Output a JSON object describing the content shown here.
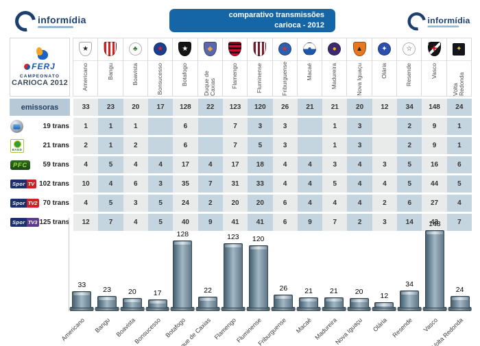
{
  "header": {
    "brand_left": "informídia",
    "brand_right": "informídia",
    "title_line1": "comparativo transmissões",
    "title_line2": "carioca - 2012"
  },
  "league": {
    "logo_text": "FERJ",
    "line1": "CAMPEONATO",
    "line2": "CARIOCA 2012"
  },
  "teams": [
    {
      "name": "Americano",
      "badge": {
        "shape": "shield",
        "pattern": "solid",
        "c1": "#ffffff",
        "c2": "#222222",
        "glyph": "★"
      }
    },
    {
      "name": "Bangu",
      "badge": {
        "shape": "shield",
        "pattern": "stripes-v",
        "c1": "#d12026",
        "c2": "#ffffff",
        "glyph": ""
      }
    },
    {
      "name": "Boavista",
      "badge": {
        "shape": "circle",
        "pattern": "solid",
        "c1": "#ffffff",
        "c2": "#2e7d32",
        "glyph": "♣"
      }
    },
    {
      "name": "Bonsucesso",
      "badge": {
        "shape": "circle",
        "pattern": "solid",
        "c1": "#1a3f8f",
        "c2": "#dd2222",
        "glyph": "★"
      }
    },
    {
      "name": "Botafogo",
      "badge": {
        "shape": "shield",
        "pattern": "solid",
        "c1": "#141414",
        "c2": "#ffffff",
        "glyph": "★"
      }
    },
    {
      "name": "Duque de Caxias",
      "badge": {
        "shape": "shield",
        "pattern": "solid",
        "c1": "#5a67ad",
        "c2": "#e8a33d",
        "glyph": "◆"
      }
    },
    {
      "name": "Flamengo",
      "badge": {
        "shape": "shield",
        "pattern": "stripes-h",
        "c1": "#c8102e",
        "c2": "#141414",
        "glyph": ""
      }
    },
    {
      "name": "Fluminense",
      "badge": {
        "shape": "shield",
        "pattern": "stripes-v",
        "c1": "#7a1c2e",
        "c2": "#ffffff",
        "glyph": ""
      }
    },
    {
      "name": "Friburguense",
      "badge": {
        "shape": "circle",
        "pattern": "solid",
        "c1": "#2a5fb0",
        "c2": "#e03030",
        "glyph": "★"
      }
    },
    {
      "name": "Macaé",
      "badge": {
        "shape": "circle",
        "pattern": "half",
        "c1": "#ffffff",
        "c2": "#1f58a8",
        "glyph": "●"
      }
    },
    {
      "name": "Madureira",
      "badge": {
        "shape": "circle",
        "pattern": "solid",
        "c1": "#3d2a6e",
        "c2": "#f2b705",
        "glyph": "●"
      }
    },
    {
      "name": "Nova Iguaçu",
      "badge": {
        "shape": "shield",
        "pattern": "solid",
        "c1": "#e87722",
        "c2": "#222222",
        "glyph": "▲"
      }
    },
    {
      "name": "Olária",
      "badge": {
        "shape": "circle",
        "pattern": "solid",
        "c1": "#2a4fae",
        "c2": "#ffffff",
        "glyph": "✦"
      }
    },
    {
      "name": "Resende",
      "badge": {
        "shape": "circle",
        "pattern": "solid",
        "c1": "#ffffff",
        "c2": "#333333",
        "glyph": "☆"
      }
    },
    {
      "name": "Vasco",
      "badge": {
        "shape": "shield",
        "pattern": "diag",
        "c1": "#141414",
        "c2": "#ffffff",
        "glyph": "✚",
        "glyph_color": "#cc1122"
      }
    },
    {
      "name": "Volta Redonda",
      "badge": {
        "shape": "square",
        "pattern": "solid",
        "c1": "#15151d",
        "c2": "#e8c23a",
        "glyph": "✦"
      }
    }
  ],
  "table": {
    "emissoras_label": "emissoras",
    "emissoras_totals": [
      33,
      23,
      20,
      17,
      128,
      22,
      123,
      120,
      26,
      21,
      21,
      20,
      12,
      34,
      148,
      24
    ],
    "broadcasters": [
      {
        "name": "Globo",
        "label": "19 trans",
        "logo": {
          "type": "globo"
        },
        "values": [
          1,
          1,
          1,
          "",
          6,
          "",
          7,
          3,
          3,
          "",
          1,
          3,
          "",
          2,
          9,
          1
        ]
      },
      {
        "name": "Band",
        "label": "21 trans",
        "logo": {
          "type": "band",
          "text": "BAND"
        },
        "values": [
          2,
          1,
          2,
          "",
          6,
          "",
          7,
          5,
          3,
          "",
          1,
          3,
          "",
          2,
          9,
          1
        ]
      },
      {
        "name": "PFC",
        "label": "59 trans",
        "logo": {
          "type": "pfc",
          "text": "PFC"
        },
        "values": [
          4,
          5,
          4,
          4,
          17,
          4,
          17,
          18,
          4,
          4,
          3,
          4,
          3,
          5,
          16,
          6
        ]
      },
      {
        "name": "SporTV",
        "label": "102 trans",
        "logo": {
          "type": "sportv",
          "part1": "Spor",
          "part2": "TV",
          "part2_bg": "#cf2027"
        },
        "values": [
          10,
          4,
          6,
          3,
          35,
          7,
          31,
          33,
          4,
          4,
          5,
          4,
          4,
          5,
          44,
          5
        ]
      },
      {
        "name": "SporTV2",
        "label": "70 trans",
        "logo": {
          "type": "sportv",
          "part1": "Spor",
          "part2": "TV2",
          "part2_bg": "#cf2027"
        },
        "values": [
          4,
          5,
          3,
          5,
          24,
          2,
          20,
          20,
          6,
          4,
          4,
          4,
          2,
          6,
          27,
          4
        ]
      },
      {
        "name": "SporTV3",
        "label": "125 trans",
        "logo": {
          "type": "sportv",
          "part1": "Spor",
          "part2": "TV3",
          "part2_bg": "#5c3a8e"
        },
        "values": [
          12,
          7,
          4,
          5,
          40,
          9,
          41,
          41,
          6,
          9,
          7,
          2,
          3,
          14,
          43,
          7
        ]
      }
    ]
  },
  "chart_data": {
    "type": "bar",
    "categories": [
      "Americano",
      "Bangu",
      "Boavista",
      "Bonsucesso",
      "Botafogo",
      "Duque de Caxias",
      "Flamengo",
      "Fluminense",
      "Friburguense",
      "Macaé",
      "Madureira",
      "Nova Iguaçu",
      "Olária",
      "Resende",
      "Vasco",
      "Volta Redonda"
    ],
    "values": [
      33,
      23,
      20,
      17,
      128,
      22,
      123,
      120,
      26,
      21,
      21,
      20,
      12,
      34,
      148,
      24
    ],
    "title": "",
    "xlabel": "",
    "ylabel": "",
    "ylim": [
      0,
      148
    ],
    "grid": false,
    "legend": false,
    "bar_color": "#5f7889",
    "data_labels": true
  },
  "colors": {
    "banner_bg": "#1566a7",
    "brand_navy": "#1c3f6e",
    "cell_gray": "#e9eaea",
    "cell_blue": "#c4d5e0",
    "emissoras_header_bg": "#b7c9d7",
    "bar_face": "#5f7889"
  }
}
